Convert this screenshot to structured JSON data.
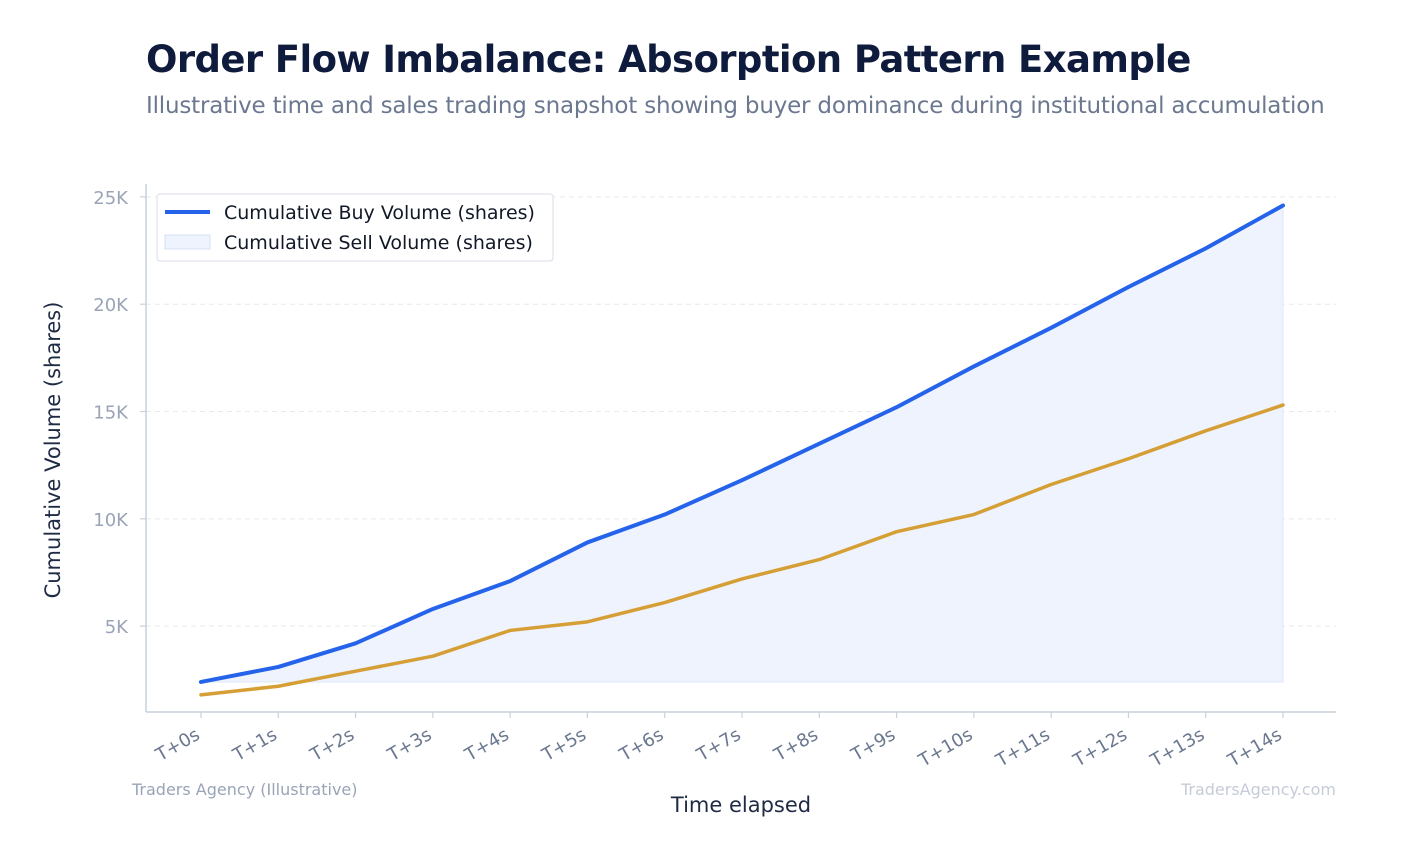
{
  "header": {
    "title": "Order Flow Imbalance: Absorption Pattern Example",
    "subtitle": "Illustrative time and sales trading snapshot showing buyer dominance during institutional accumulation"
  },
  "footer": {
    "left": "Traders Agency (Illustrative)",
    "right": "TradersAgency.com"
  },
  "colors": {
    "buy": "#2563eb",
    "sell": "#d59f35",
    "fill": "#eef3fd",
    "grid": "#e6e9ef",
    "axis": "#c9d0dc"
  },
  "chart_data": {
    "type": "line",
    "title": "Order Flow Imbalance: Absorption Pattern Example",
    "subtitle": "Illustrative time and sales trading snapshot showing buyer dominance during institutional accumulation",
    "xlabel": "Time elapsed",
    "ylabel": "Cumulative Volume (shares)",
    "categories": [
      "T+0s",
      "T+1s",
      "T+2s",
      "T+3s",
      "T+4s",
      "T+5s",
      "T+6s",
      "T+7s",
      "T+8s",
      "T+9s",
      "T+10s",
      "T+11s",
      "T+12s",
      "T+13s",
      "T+14s"
    ],
    "y_ticks": [
      5000,
      10000,
      15000,
      20000,
      25000
    ],
    "y_tick_labels": [
      "5K",
      "10K",
      "15K",
      "20K",
      "25K"
    ],
    "ylim": [
      1000,
      25600
    ],
    "grid": true,
    "legend_position": "top-left",
    "series": [
      {
        "name": "Cumulative Buy Volume (shares)",
        "values": [
          2400,
          3100,
          4200,
          5800,
          7100,
          8900,
          10200,
          11800,
          13500,
          15200,
          17100,
          18900,
          20800,
          22600,
          24600
        ]
      },
      {
        "name": "Cumulative Sell Volume (shares)",
        "values": [
          1800,
          2200,
          2900,
          3600,
          4800,
          5200,
          6100,
          7200,
          8100,
          9400,
          10200,
          11600,
          12800,
          14100,
          15300
        ]
      }
    ],
    "shaded_area": {
      "series": "Cumulative Buy Volume (shares)",
      "baseline": 2400
    }
  }
}
